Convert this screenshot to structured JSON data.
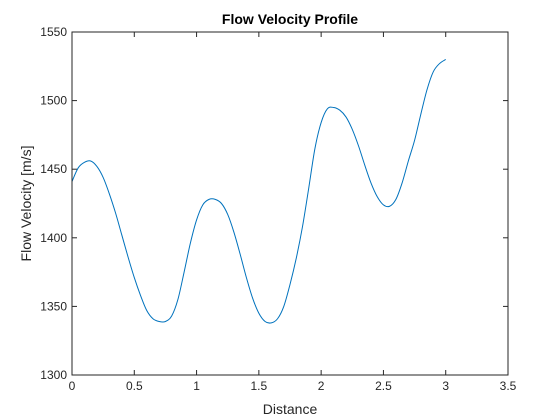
{
  "chart_data": {
    "type": "line",
    "title": "Flow Velocity Profile",
    "xlabel": "Distance",
    "ylabel": "Flow Velocity [m/s]",
    "xlim": [
      0,
      3.5
    ],
    "ylim": [
      1300,
      1550
    ],
    "xticks": [
      0,
      0.5,
      1,
      1.5,
      2,
      2.5,
      3,
      3.5
    ],
    "xtick_labels": [
      "0",
      "0.5",
      "1",
      "1.5",
      "2",
      "2.5",
      "3",
      "3.5"
    ],
    "yticks": [
      1300,
      1350,
      1400,
      1450,
      1500,
      1550
    ],
    "ytick_labels": [
      "1300",
      "1350",
      "1400",
      "1450",
      "1500",
      "1550"
    ],
    "grid": false,
    "line_color": "#0072BD",
    "series": [
      {
        "x": [
          0,
          0.05,
          0.1,
          0.15,
          0.2,
          0.25,
          0.3,
          0.35,
          0.4,
          0.45,
          0.5,
          0.55,
          0.6,
          0.65,
          0.7,
          0.75,
          0.8,
          0.85,
          0.9,
          0.95,
          1.0,
          1.05,
          1.1,
          1.15,
          1.2,
          1.25,
          1.3,
          1.35,
          1.4,
          1.45,
          1.5,
          1.55,
          1.6,
          1.65,
          1.7,
          1.75,
          1.8,
          1.85,
          1.9,
          1.95,
          2.0,
          2.05,
          2.1,
          2.15,
          2.2,
          2.25,
          2.3,
          2.35,
          2.4,
          2.45,
          2.5,
          2.55,
          2.6,
          2.65,
          2.7,
          2.75,
          2.8,
          2.85,
          2.9,
          2.95,
          3.0
        ],
        "values": [
          1441,
          1451,
          1455,
          1456,
          1452,
          1444,
          1432,
          1418,
          1402,
          1386,
          1371,
          1358,
          1347,
          1341,
          1339,
          1339,
          1343,
          1355,
          1375,
          1396,
          1413,
          1424,
          1428,
          1428,
          1425,
          1417,
          1404,
          1388,
          1371,
          1356,
          1345,
          1339,
          1338,
          1341,
          1350,
          1366,
          1385,
          1408,
          1436,
          1465,
          1484,
          1494,
          1495,
          1493,
          1488,
          1479,
          1467,
          1453,
          1440,
          1430,
          1424,
          1423,
          1428,
          1440,
          1456,
          1471,
          1490,
          1508,
          1521,
          1527,
          1530
        ]
      }
    ]
  }
}
